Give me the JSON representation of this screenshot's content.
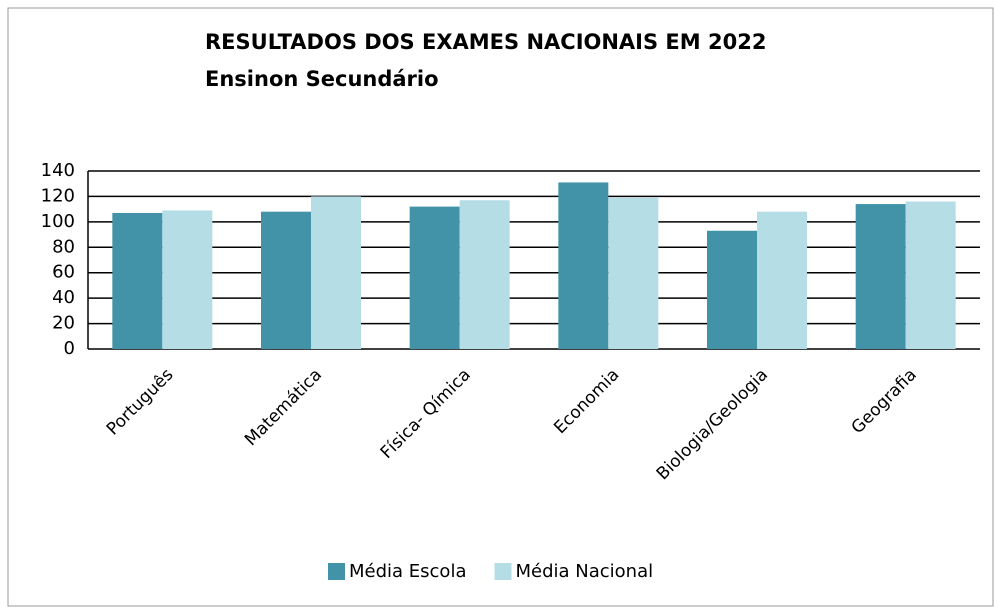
{
  "chart_data": {
    "type": "bar",
    "title": "RESULTADOS DOS EXAMES NACIONAIS EM 2022",
    "subtitle": "Ensinon Secundário",
    "categories": [
      "Português",
      "Matemática",
      "Física- Qímica",
      "Economia",
      "Biologia/Geologia",
      "Geografia"
    ],
    "series": [
      {
        "name": "Média Escola",
        "color": "#4393a8",
        "values": [
          107,
          108,
          112,
          131,
          93,
          114
        ]
      },
      {
        "name": "Média Nacional",
        "color": "#b5dde6",
        "values": [
          109,
          120,
          117,
          119,
          108,
          116
        ]
      }
    ],
    "ylim": [
      0,
      140
    ],
    "yticks": [
      0,
      20,
      40,
      60,
      80,
      100,
      120,
      140
    ],
    "grid": true,
    "legend": "bottom"
  }
}
